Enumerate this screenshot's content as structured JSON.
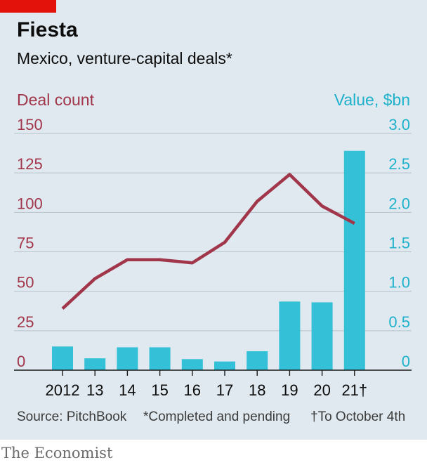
{
  "title": "Fiesta",
  "subtitle": "Mexico, venture-capital deals*",
  "source": "Source: PitchBook",
  "footnote_1": "*Completed and pending",
  "footnote_2": "†To October 4th",
  "brand": "The Economist",
  "colors": {
    "background": "#dfe9ef",
    "line": "#a1354a",
    "bars": "#34c0d6",
    "accent": "#e3120b",
    "gridline": "#b7c2c9"
  },
  "chart_data": {
    "type": "bar+line",
    "categories": [
      "2012",
      "13",
      "14",
      "15",
      "16",
      "17",
      "18",
      "19",
      "20",
      "21†"
    ],
    "series": [
      {
        "name": "Deal count",
        "type": "line",
        "axis": "left",
        "values": [
          39,
          58,
          70,
          70,
          68,
          81,
          107,
          124,
          104,
          93
        ]
      },
      {
        "name": "Value, $bn",
        "type": "bar",
        "axis": "right",
        "values": [
          0.3,
          0.15,
          0.29,
          0.29,
          0.14,
          0.11,
          0.24,
          0.87,
          0.86,
          2.78
        ]
      }
    ],
    "left_axis": {
      "label": "Deal count",
      "ylim": [
        0,
        150
      ],
      "ticks": [
        "150",
        "125",
        "100",
        "75",
        "50",
        "25",
        "0"
      ]
    },
    "right_axis": {
      "label": "Value, $bn",
      "ylim": [
        0,
        3
      ],
      "ticks": [
        "3.0",
        "2.5",
        "2.0",
        "1.5",
        "1.0",
        "0.5",
        "0"
      ]
    },
    "grid": true
  }
}
